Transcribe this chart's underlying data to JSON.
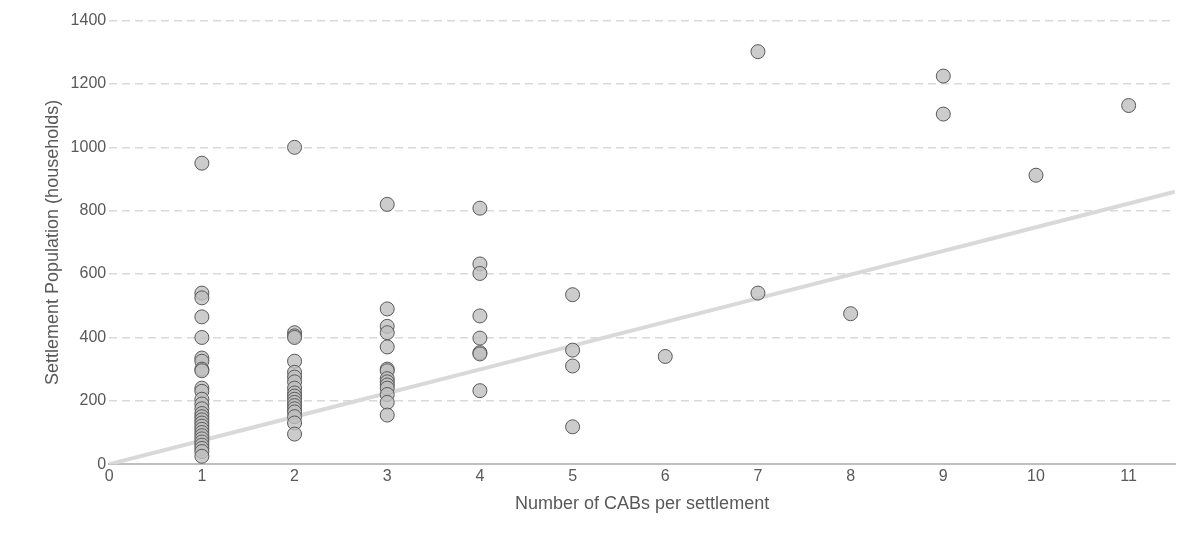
{
  "chart_data": {
    "type": "scatter",
    "xlabel": "Number of CABs per settlement",
    "ylabel": "Settlement Population (households)",
    "xlim": [
      0,
      11.5
    ],
    "xticks": [
      0,
      1,
      2,
      3,
      4,
      5,
      6,
      7,
      8,
      9,
      10,
      11
    ],
    "ylim": [
      0,
      1400
    ],
    "yticks": [
      0,
      200,
      400,
      600,
      800,
      1000,
      1200,
      1400
    ],
    "grid": "y",
    "legend": false,
    "marker": "circle",
    "series": [
      {
        "type": "line",
        "color": "#d9d9d9",
        "x": [
          0,
          11.5
        ],
        "values": [
          0,
          860
        ],
        "marker": "none",
        "line_style": "solid"
      },
      {
        "color": "#bfbfbf",
        "x": [
          1,
          1,
          1,
          1,
          1,
          1,
          1,
          1,
          1,
          1,
          1,
          1,
          1,
          1,
          1,
          1,
          1,
          1,
          1,
          1,
          1,
          1,
          1,
          1,
          1,
          1,
          1,
          1,
          2,
          2,
          2,
          2,
          2,
          2,
          2,
          2,
          2,
          2,
          2,
          2,
          2,
          2,
          2,
          2,
          2,
          2,
          2,
          3,
          3,
          3,
          3,
          3,
          3,
          3,
          3,
          3,
          3,
          3,
          3,
          3,
          3,
          4,
          4,
          4,
          4,
          4,
          4,
          4,
          4,
          5,
          5,
          5,
          5,
          6,
          7,
          7,
          8,
          9,
          9,
          10,
          11
        ],
        "values": [
          950,
          540,
          525,
          465,
          400,
          335,
          325,
          300,
          295,
          240,
          230,
          205,
          190,
          175,
          160,
          150,
          140,
          130,
          120,
          110,
          100,
          90,
          80,
          70,
          60,
          50,
          40,
          25,
          1000,
          415,
          405,
          400,
          325,
          290,
          275,
          260,
          240,
          225,
          215,
          205,
          195,
          185,
          175,
          165,
          150,
          130,
          95,
          820,
          490,
          435,
          415,
          370,
          300,
          295,
          270,
          260,
          250,
          240,
          220,
          195,
          155,
          808,
          632,
          602,
          468,
          398,
          352,
          348,
          232,
          535,
          360,
          310,
          118,
          340,
          1302,
          540,
          475,
          1225,
          1105,
          912,
          1132
        ]
      }
    ]
  }
}
